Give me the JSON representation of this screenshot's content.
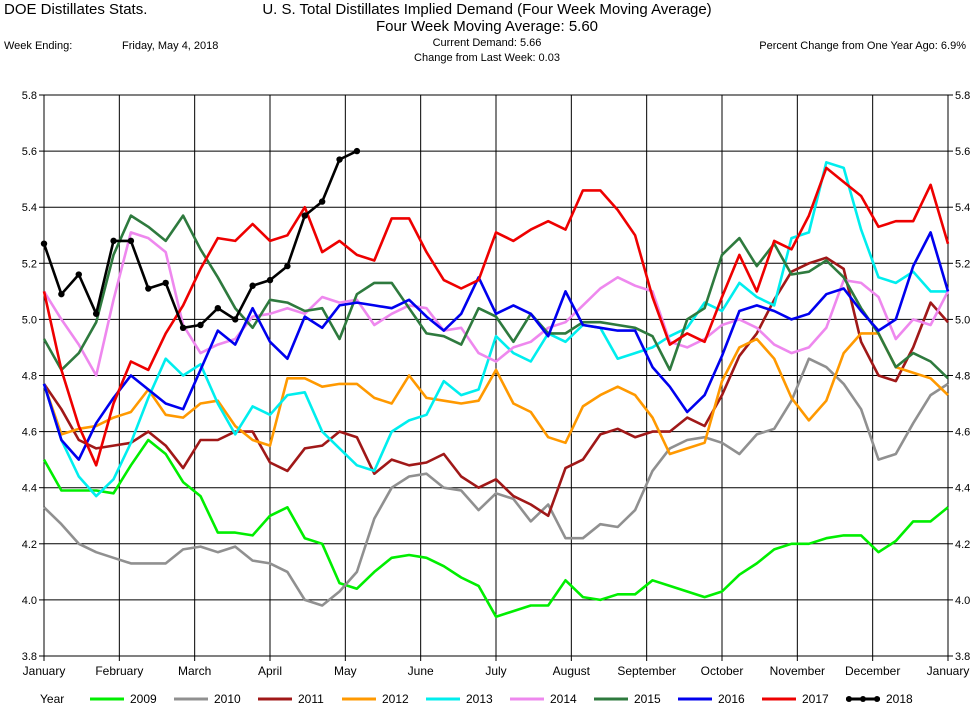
{
  "header": {
    "app_title": "DOE Distillates Stats.",
    "main_title": "U. S. Total Distillates Implied Demand  (Four Week Moving Average)",
    "subtitle": "Four Week Moving Average:  5.60",
    "week_ending_label": "Week Ending:",
    "week_ending_value": "Friday, May 4, 2018",
    "current_demand": "Current Demand:  5.66",
    "change_last_week": "Change from Last Week:  0.03",
    "percent_change": "Percent Change from One Year Ago:  6.9%"
  },
  "chart_data": {
    "type": "line",
    "x_axis": {
      "type": "week",
      "range": [
        0,
        52
      ],
      "tick_labels": [
        "January",
        "February",
        "March",
        "April",
        "May",
        "June",
        "July",
        "August",
        "September",
        "October",
        "November",
        "December",
        "January"
      ]
    },
    "y_axis": {
      "range": [
        3.8,
        5.8
      ],
      "ticks": [
        "3.8",
        "4.0",
        "4.2",
        "4.4",
        "4.6",
        "4.8",
        "5.0",
        "5.2",
        "5.4",
        "5.6",
        "5.8"
      ],
      "labels_both_sides": true
    },
    "grid": true,
    "legend": {
      "position": "bottom",
      "title": "Year"
    },
    "series": [
      {
        "name": "2009",
        "color": "#00ee00",
        "values": [
          4.5,
          4.39,
          4.39,
          4.39,
          4.38,
          4.48,
          4.57,
          4.52,
          4.42,
          4.37,
          4.24,
          4.24,
          4.23,
          4.3,
          4.33,
          4.22,
          4.2,
          4.06,
          4.04,
          4.1,
          4.15,
          4.16,
          4.15,
          4.12,
          4.08,
          4.05,
          3.94,
          3.96,
          3.98,
          3.98,
          4.07,
          4.01,
          4.0,
          4.02,
          4.02,
          4.07,
          4.05,
          4.03,
          4.01,
          4.03,
          4.09,
          4.13,
          4.18,
          4.2,
          4.2,
          4.22,
          4.23,
          4.23,
          4.17,
          4.21,
          4.28,
          4.28,
          4.33
        ]
      },
      {
        "name": "2010",
        "color": "#909090",
        "values": [
          4.33,
          4.27,
          4.2,
          4.17,
          4.15,
          4.13,
          4.13,
          4.13,
          4.18,
          4.19,
          4.17,
          4.19,
          4.14,
          4.13,
          4.1,
          4.0,
          3.98,
          4.03,
          4.1,
          4.29,
          4.4,
          4.44,
          4.45,
          4.4,
          4.39,
          4.32,
          4.38,
          4.36,
          4.28,
          4.34,
          4.22,
          4.22,
          4.27,
          4.26,
          4.32,
          4.46,
          4.54,
          4.57,
          4.58,
          4.56,
          4.52,
          4.59,
          4.61,
          4.71,
          4.86,
          4.83,
          4.77,
          4.68,
          4.5,
          4.52,
          4.63,
          4.73,
          4.77
        ]
      },
      {
        "name": "2011",
        "color": "#a01818",
        "values": [
          4.77,
          4.68,
          4.57,
          4.54,
          4.55,
          4.56,
          4.6,
          4.55,
          4.47,
          4.57,
          4.57,
          4.6,
          4.6,
          4.49,
          4.46,
          4.54,
          4.55,
          4.6,
          4.58,
          4.45,
          4.5,
          4.48,
          4.49,
          4.52,
          4.44,
          4.4,
          4.43,
          4.37,
          4.34,
          4.3,
          4.47,
          4.5,
          4.59,
          4.61,
          4.58,
          4.6,
          4.6,
          4.65,
          4.62,
          4.73,
          4.87,
          4.95,
          5.07,
          5.17,
          5.2,
          5.22,
          5.18,
          4.92,
          4.8,
          4.78,
          4.9,
          5.06,
          4.99
        ]
      },
      {
        "name": "2012",
        "color": "#ff9900",
        "values": [
          4.77,
          4.59,
          4.61,
          4.62,
          4.65,
          4.67,
          4.75,
          4.66,
          4.65,
          4.7,
          4.71,
          4.62,
          4.57,
          4.55,
          4.79,
          4.79,
          4.76,
          4.77,
          4.77,
          4.72,
          4.7,
          4.8,
          4.72,
          4.71,
          4.7,
          4.71,
          4.82,
          4.7,
          4.67,
          4.58,
          4.56,
          4.69,
          4.73,
          4.76,
          4.73,
          4.65,
          4.52,
          4.54,
          4.56,
          4.78,
          4.9,
          4.93,
          4.86,
          4.72,
          4.64,
          4.71,
          4.88,
          4.95,
          4.95,
          4.83,
          4.81,
          4.79,
          4.73
        ]
      },
      {
        "name": "2013",
        "color": "#00eeee",
        "values": [
          4.77,
          4.57,
          4.44,
          4.37,
          4.43,
          4.56,
          4.72,
          4.86,
          4.8,
          4.84,
          4.7,
          4.59,
          4.69,
          4.66,
          4.73,
          4.74,
          4.6,
          4.54,
          4.48,
          4.46,
          4.6,
          4.64,
          4.66,
          4.78,
          4.73,
          4.75,
          4.94,
          4.88,
          4.85,
          4.95,
          4.92,
          4.98,
          4.97,
          4.86,
          4.88,
          4.9,
          4.94,
          4.97,
          5.06,
          5.03,
          5.13,
          5.08,
          5.05,
          5.29,
          5.31,
          5.56,
          5.54,
          5.32,
          5.15,
          5.13,
          5.17,
          5.1,
          5.1
        ]
      },
      {
        "name": "2014",
        "color": "#ee88ee",
        "values": [
          5.1,
          5.0,
          4.91,
          4.8,
          5.07,
          5.31,
          5.29,
          5.24,
          4.98,
          4.88,
          4.91,
          4.93,
          5.01,
          5.02,
          5.04,
          5.02,
          5.08,
          5.06,
          5.07,
          4.98,
          5.02,
          5.05,
          5.04,
          4.96,
          4.97,
          4.88,
          4.85,
          4.9,
          4.92,
          4.97,
          4.99,
          5.05,
          5.11,
          5.15,
          5.12,
          5.1,
          4.92,
          4.9,
          4.93,
          4.98,
          5.0,
          4.97,
          4.91,
          4.88,
          4.9,
          4.97,
          5.14,
          5.13,
          5.08,
          4.93,
          5.0,
          4.98,
          5.1
        ]
      },
      {
        "name": "2015",
        "color": "#2e7a3e",
        "values": [
          4.93,
          4.82,
          4.88,
          4.99,
          5.23,
          5.37,
          5.33,
          5.28,
          5.37,
          5.25,
          5.15,
          5.04,
          4.97,
          5.07,
          5.06,
          5.03,
          5.04,
          4.93,
          5.09,
          5.13,
          5.13,
          5.04,
          4.95,
          4.94,
          4.91,
          5.04,
          5.01,
          4.92,
          5.02,
          4.95,
          4.95,
          4.99,
          4.99,
          4.98,
          4.97,
          4.94,
          4.82,
          5.0,
          5.04,
          5.23,
          5.29,
          5.19,
          5.27,
          5.16,
          5.17,
          5.21,
          5.15,
          5.04,
          4.95,
          4.83,
          4.88,
          4.85,
          4.79
        ]
      },
      {
        "name": "2016",
        "color": "#0000ee",
        "values": [
          4.77,
          4.57,
          4.5,
          4.63,
          4.72,
          4.8,
          4.75,
          4.7,
          4.68,
          4.82,
          4.96,
          4.91,
          5.04,
          4.92,
          4.86,
          5.01,
          4.97,
          5.05,
          5.06,
          5.05,
          5.04,
          5.07,
          5.01,
          4.96,
          5.02,
          5.15,
          5.02,
          5.05,
          5.02,
          4.94,
          5.1,
          4.98,
          4.97,
          4.96,
          4.96,
          4.83,
          4.76,
          4.67,
          4.73,
          4.87,
          5.03,
          5.05,
          5.03,
          5.0,
          5.02,
          5.09,
          5.11,
          5.03,
          4.96,
          5.0,
          5.19,
          5.31,
          5.1
        ]
      },
      {
        "name": "2017",
        "color": "#ee0000",
        "values": [
          5.1,
          4.82,
          4.62,
          4.48,
          4.7,
          4.85,
          4.82,
          4.95,
          5.05,
          5.18,
          5.29,
          5.28,
          5.34,
          5.28,
          5.3,
          5.4,
          5.24,
          5.28,
          5.23,
          5.21,
          5.36,
          5.36,
          5.24,
          5.14,
          5.11,
          5.14,
          5.31,
          5.28,
          5.32,
          5.35,
          5.32,
          5.46,
          5.46,
          5.39,
          5.3,
          5.08,
          4.91,
          4.95,
          4.92,
          5.08,
          5.23,
          5.1,
          5.28,
          5.25,
          5.37,
          5.54,
          5.49,
          5.44,
          5.33,
          5.35,
          5.35,
          5.48,
          5.27
        ]
      },
      {
        "name": "2018",
        "color": "#000000",
        "markers": true,
        "values": [
          5.27,
          5.09,
          5.16,
          5.02,
          5.28,
          5.28,
          5.11,
          5.13,
          4.97,
          4.98,
          5.04,
          5.0,
          5.12,
          5.14,
          5.19,
          5.37,
          5.42,
          5.57,
          5.6
        ]
      }
    ]
  }
}
